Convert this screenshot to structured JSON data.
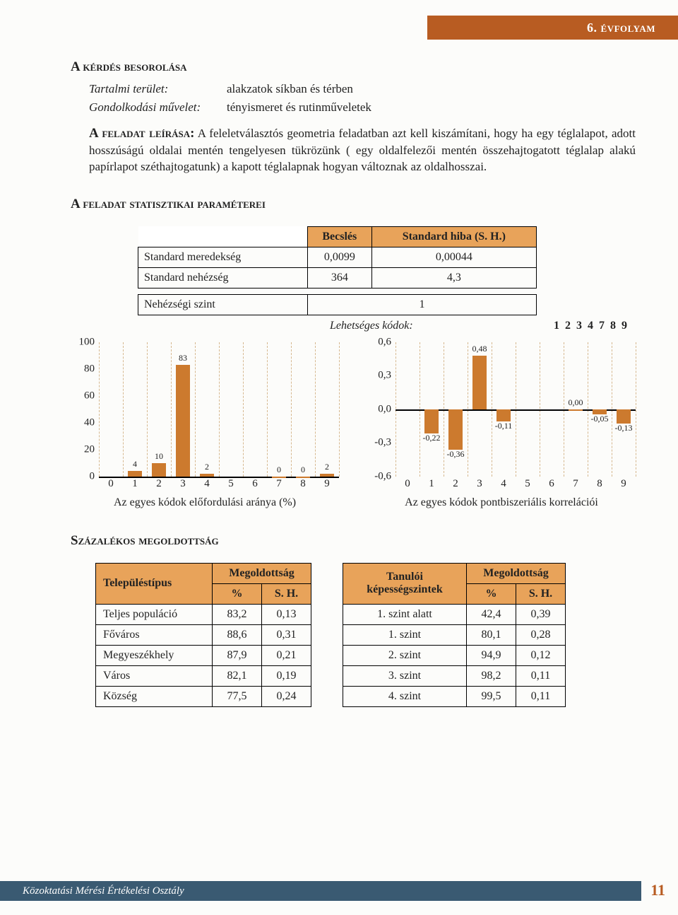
{
  "header": {
    "grade": "6. évfolyam"
  },
  "section_classification": {
    "title": "A kérdés besorolása",
    "rows": [
      {
        "key": "Tartalmi terület:",
        "val": "alakzatok síkban és térben"
      },
      {
        "key": "Gondolkodási művelet:",
        "val": "tényismeret és rutinműveletek"
      }
    ]
  },
  "description": {
    "lead": "A feladat leírása:",
    "text": " A feleletválasztós geometria feladatban azt kell kiszámítani, hogy ha egy téglalapot, adott hosszúságú oldalai mentén tengelyesen tükrözünk ( egy oldalfelezői mentén összehajtogatott téglalap alakú papírlapot széthajtogatunk) a kapott téglalapnak hogyan változnak az oldalhosszai."
  },
  "stats": {
    "title": "A feladat statisztikai paraméterei",
    "header": [
      "",
      "Becslés",
      "Standard hiba (S. H.)"
    ],
    "rows": [
      {
        "label": "Standard meredekség",
        "est": "0,0099",
        "se": "0,00044"
      },
      {
        "label": "Standard nehézség",
        "est": "364",
        "se": "4,3"
      }
    ],
    "difficulty": {
      "label": "Nehézségi szint",
      "value": "1"
    },
    "codes": {
      "label": "Lehetséges kódok:",
      "value": "1 2 3 4 7 8 9"
    }
  },
  "chart_left": {
    "type": "bar",
    "title": "Az egyes kódok előfordulási aránya (%)",
    "x": [
      0,
      1,
      2,
      3,
      4,
      5,
      6,
      7,
      8,
      9
    ],
    "y_ticks": [
      0,
      20,
      40,
      60,
      80,
      100
    ],
    "ymin": 0,
    "ymax": 100,
    "bars": [
      {
        "x": 1,
        "v": 4,
        "label": "4"
      },
      {
        "x": 2,
        "v": 10,
        "label": "10"
      },
      {
        "x": 3,
        "v": 83,
        "label": "83"
      },
      {
        "x": 4,
        "v": 2,
        "label": "2"
      },
      {
        "x": 7,
        "v": 0,
        "label": "0"
      },
      {
        "x": 8,
        "v": 0,
        "label": "0"
      },
      {
        "x": 9,
        "v": 2,
        "label": "2"
      }
    ],
    "bar_color": "#cc7a2e",
    "grid_color": "#d6b88f",
    "baseline_y": 0
  },
  "chart_right": {
    "type": "bar",
    "title": "Az egyes kódok pontbiszeriális korrelációi",
    "x": [
      0,
      1,
      2,
      3,
      4,
      5,
      6,
      7,
      8,
      9
    ],
    "y_ticks": [
      -0.6,
      -0.3,
      0.0,
      0.3,
      0.6
    ],
    "y_tick_labels": [
      "-0,6",
      "-0,3",
      "0,0",
      "0,3",
      "0,6"
    ],
    "ymin": -0.6,
    "ymax": 0.6,
    "bars": [
      {
        "x": 1,
        "v": -0.22,
        "label": "-0,22"
      },
      {
        "x": 2,
        "v": -0.36,
        "label": "-0,36"
      },
      {
        "x": 3,
        "v": 0.48,
        "label": "0,48"
      },
      {
        "x": 4,
        "v": -0.11,
        "label": "-0,11"
      },
      {
        "x": 7,
        "v": 0.0,
        "label": "0,00"
      },
      {
        "x": 8,
        "v": -0.05,
        "label": "-0,05"
      },
      {
        "x": 9,
        "v": -0.13,
        "label": "-0,13"
      }
    ],
    "bar_color": "#cc7a2e",
    "grid_color": "#d6b88f",
    "baseline_y": 0
  },
  "solved": {
    "title": "Százalékos megoldottság",
    "table1": {
      "head1": "Településtípus",
      "head2": "Megoldottság",
      "sub": [
        "%",
        "S. H."
      ],
      "rows": [
        [
          "Teljes populáció",
          "83,2",
          "0,13"
        ],
        [
          "Főváros",
          "88,6",
          "0,31"
        ],
        [
          "Megyeszékhely",
          "87,9",
          "0,21"
        ],
        [
          "Város",
          "82,1",
          "0,19"
        ],
        [
          "Község",
          "77,5",
          "0,24"
        ]
      ]
    },
    "table2": {
      "head1": "Tanulói képességszintek",
      "head2": "Megoldottság",
      "sub": [
        "%",
        "S. H."
      ],
      "rows": [
        [
          "1. szint alatt",
          "42,4",
          "0,39"
        ],
        [
          "1. szint",
          "80,1",
          "0,28"
        ],
        [
          "2. szint",
          "94,9",
          "0,12"
        ],
        [
          "3. szint",
          "98,2",
          "0,11"
        ],
        [
          "4. szint",
          "99,5",
          "0,11"
        ]
      ]
    }
  },
  "footer": {
    "text": "Közoktatási Mérési Értékelési Osztály",
    "page": "11"
  }
}
